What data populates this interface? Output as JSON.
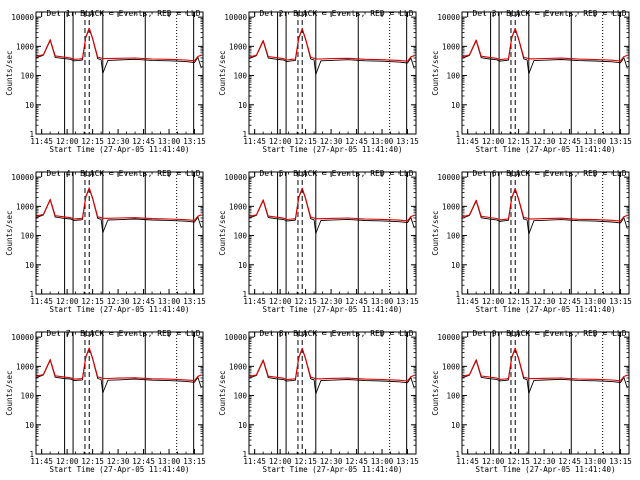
{
  "figure": {
    "shared_time_axis": {
      "xlabel": "Start Time (27-Apr-05 11:41:40)",
      "tick_labels": [
        "11:45",
        "12:00",
        "12:15",
        "12:30",
        "12:45",
        "13:00",
        "13:15"
      ]
    },
    "shared_count_axis": {
      "ylabel": "Counts/sec",
      "tick_labels": [
        "1",
        "10",
        "100",
        "1000",
        "10000"
      ]
    }
  },
  "colors": {
    "events": "#000000",
    "lld": "#e00000",
    "axes": "#000000"
  },
  "chart_data": [
    {
      "type": "line",
      "title": "Det 1r  BLACK = Events, RED = LLD",
      "xlabel": "Start Time (27-Apr-05 11:41:40)",
      "ylabel": "Counts/sec",
      "xlim": [
        "11:41:40",
        "13:20:00"
      ],
      "ylim": [
        1,
        15000
      ],
      "yscale": "log",
      "x": [
        "11:41:40",
        "11:46",
        "11:50",
        "11:53",
        "11:58",
        "12:02",
        "12:04",
        "12:07",
        "12:09",
        "12:11",
        "12:13",
        "12:15",
        "12:18",
        "12:20",
        "12:21",
        "12:24",
        "12:30",
        "12:40",
        "12:50",
        "13:00",
        "13:10",
        "13:15",
        "13:17",
        "13:19"
      ],
      "series": [
        {
          "name": "Events",
          "values": [
            400,
            500,
            1600,
            420,
            380,
            360,
            320,
            330,
            340,
            2000,
            4000,
            1800,
            380,
            350,
            120,
            330,
            340,
            360,
            330,
            320,
            300,
            280,
            420,
            180
          ]
        },
        {
          "name": "LLD",
          "values": [
            450,
            520,
            1700,
            470,
            430,
            400,
            360,
            370,
            380,
            2100,
            4200,
            1900,
            430,
            400,
            380,
            380,
            390,
            400,
            370,
            360,
            340,
            320,
            450,
            500
          ]
        }
      ]
    },
    {
      "type": "line",
      "title": "Det 2r  BLACK = Events, RED = LLD",
      "xlabel": "Start Time (27-Apr-05 11:41:40)",
      "ylabel": "Counts/sec",
      "xlim": [
        "11:41:40",
        "13:20:00"
      ],
      "ylim": [
        1,
        15000
      ],
      "yscale": "log",
      "x": [
        "11:41:40",
        "11:46",
        "11:50",
        "11:53",
        "11:58",
        "12:02",
        "12:04",
        "12:07",
        "12:09",
        "12:11",
        "12:13",
        "12:15",
        "12:18",
        "12:20",
        "12:21",
        "12:24",
        "12:30",
        "12:40",
        "12:50",
        "13:00",
        "13:10",
        "13:15",
        "13:17",
        "13:19"
      ],
      "series": [
        {
          "name": "Events",
          "values": [
            380,
            480,
            1500,
            400,
            360,
            340,
            300,
            320,
            330,
            1900,
            3800,
            1700,
            370,
            340,
            110,
            320,
            330,
            350,
            320,
            310,
            290,
            270,
            400,
            170
          ]
        },
        {
          "name": "LLD",
          "values": [
            430,
            500,
            1600,
            450,
            410,
            380,
            340,
            360,
            370,
            2000,
            4000,
            1800,
            420,
            390,
            370,
            370,
            380,
            390,
            360,
            350,
            330,
            310,
            440,
            480
          ]
        }
      ]
    },
    {
      "type": "line",
      "title": "Det 3r  BLACK = Events, RED = LLD",
      "xlabel": "Start Time (27-Apr-05 11:41:40)",
      "ylabel": "Counts/sec",
      "xlim": [
        "11:41:40",
        "13:20:00"
      ],
      "ylim": [
        1,
        15000
      ],
      "yscale": "log",
      "x": [
        "11:41:40",
        "11:46",
        "11:50",
        "11:53",
        "11:58",
        "12:02",
        "12:04",
        "12:07",
        "12:09",
        "12:11",
        "12:13",
        "12:15",
        "12:18",
        "12:20",
        "12:21",
        "12:24",
        "12:30",
        "12:40",
        "12:50",
        "13:00",
        "13:10",
        "13:15",
        "13:17",
        "13:19"
      ],
      "series": [
        {
          "name": "Events",
          "values": [
            390,
            490,
            1550,
            410,
            370,
            350,
            310,
            325,
            335,
            1950,
            3900,
            1750,
            375,
            345,
            115,
            325,
            335,
            355,
            325,
            315,
            295,
            275,
            410,
            175
          ]
        },
        {
          "name": "LLD",
          "values": [
            440,
            510,
            1650,
            460,
            420,
            390,
            350,
            365,
            375,
            2050,
            4100,
            1850,
            425,
            395,
            375,
            375,
            385,
            395,
            365,
            355,
            335,
            315,
            445,
            490
          ]
        }
      ]
    },
    {
      "type": "line",
      "title": "Det 4r  BLACK = Events, RED = LLD",
      "xlabel": "Start Time (27-Apr-05 11:41:40)",
      "ylabel": "Counts/sec",
      "xlim": [
        "11:41:40",
        "13:20:00"
      ],
      "ylim": [
        1,
        15000
      ],
      "yscale": "log",
      "x": [
        "11:41:40",
        "11:46",
        "11:50",
        "11:53",
        "11:58",
        "12:02",
        "12:04",
        "12:07",
        "12:09",
        "12:11",
        "12:13",
        "12:15",
        "12:18",
        "12:20",
        "12:21",
        "12:24",
        "12:30",
        "12:40",
        "12:50",
        "13:00",
        "13:10",
        "13:15",
        "13:17",
        "13:19"
      ],
      "series": [
        {
          "name": "Events",
          "values": [
            410,
            510,
            1650,
            430,
            390,
            370,
            330,
            340,
            350,
            2050,
            4100,
            1850,
            390,
            360,
            125,
            340,
            350,
            370,
            340,
            330,
            310,
            290,
            430,
            185
          ]
        },
        {
          "name": "LLD",
          "values": [
            460,
            530,
            1750,
            480,
            440,
            410,
            370,
            380,
            390,
            2150,
            4300,
            1950,
            440,
            410,
            390,
            390,
            400,
            410,
            380,
            370,
            350,
            330,
            460,
            510
          ]
        }
      ]
    },
    {
      "type": "line",
      "title": "Det 5r  BLACK = Events, RED = LLD",
      "xlabel": "Start Time (27-Apr-05 11:41:40)",
      "ylabel": "Counts/sec",
      "xlim": [
        "11:41:40",
        "13:20:00"
      ],
      "ylim": [
        1,
        15000
      ],
      "yscale": "log",
      "x": [
        "11:41:40",
        "11:46",
        "11:50",
        "11:53",
        "11:58",
        "12:02",
        "12:04",
        "12:07",
        "12:09",
        "12:11",
        "12:13",
        "12:15",
        "12:18",
        "12:20",
        "12:21",
        "12:24",
        "12:30",
        "12:40",
        "12:50",
        "13:00",
        "13:10",
        "13:15",
        "13:17",
        "13:19"
      ],
      "series": [
        {
          "name": "Events",
          "values": [
            395,
            495,
            1580,
            415,
            375,
            355,
            315,
            328,
            338,
            1980,
            3950,
            1780,
            378,
            348,
            118,
            328,
            338,
            358,
            328,
            318,
            298,
            278,
            415,
            178
          ]
        },
        {
          "name": "LLD",
          "values": [
            445,
            515,
            1680,
            465,
            425,
            395,
            355,
            368,
            378,
            2080,
            4150,
            1880,
            428,
            398,
            378,
            378,
            388,
            398,
            368,
            358,
            338,
            318,
            448,
            495
          ]
        }
      ]
    },
    {
      "type": "line",
      "title": "Det 6r  BLACK = Events, RED = LLD",
      "xlabel": "Start Time (27-Apr-05 11:41:40)",
      "ylabel": "Counts/sec",
      "xlim": [
        "11:41:40",
        "13:20:00"
      ],
      "ylim": [
        1,
        15000
      ],
      "yscale": "log",
      "x": [
        "11:41:40",
        "11:46",
        "11:50",
        "11:53",
        "11:58",
        "12:02",
        "12:04",
        "12:07",
        "12:09",
        "12:11",
        "12:13",
        "12:15",
        "12:18",
        "12:20",
        "12:21",
        "12:24",
        "12:30",
        "12:40",
        "12:50",
        "13:00",
        "13:10",
        "13:15",
        "13:17",
        "13:19"
      ],
      "series": [
        {
          "name": "Events",
          "values": [
            385,
            485,
            1520,
            405,
            365,
            345,
            305,
            322,
            332,
            1920,
            3850,
            1720,
            372,
            342,
            112,
            322,
            332,
            352,
            322,
            312,
            292,
            272,
            405,
            172
          ]
        },
        {
          "name": "LLD",
          "values": [
            435,
            505,
            1620,
            455,
            415,
            385,
            345,
            362,
            372,
            2020,
            4050,
            1820,
            422,
            392,
            372,
            372,
            382,
            392,
            362,
            352,
            332,
            312,
            442,
            485
          ]
        }
      ]
    },
    {
      "type": "line",
      "title": "Det 7r  BLACK = Events, RED = LLD",
      "xlabel": "Start Time (27-Apr-05 11:41:40)",
      "ylabel": "Counts/sec",
      "xlim": [
        "11:41:40",
        "13:20:00"
      ],
      "ylim": [
        1,
        15000
      ],
      "yscale": "log",
      "x": [
        "11:41:40",
        "11:46",
        "11:50",
        "11:53",
        "11:58",
        "12:02",
        "12:04",
        "12:07",
        "12:09",
        "12:11",
        "12:13",
        "12:15",
        "12:18",
        "12:20",
        "12:21",
        "12:24",
        "12:30",
        "12:40",
        "12:50",
        "13:00",
        "13:10",
        "13:15",
        "13:17",
        "13:19"
      ],
      "series": [
        {
          "name": "Events",
          "values": [
            405,
            505,
            1620,
            425,
            385,
            365,
            325,
            335,
            345,
            2020,
            4050,
            1820,
            385,
            355,
            122,
            335,
            345,
            365,
            335,
            325,
            305,
            285,
            425,
            182
          ]
        },
        {
          "name": "LLD",
          "values": [
            455,
            525,
            1720,
            475,
            435,
            405,
            365,
            375,
            385,
            2120,
            4250,
            1920,
            435,
            405,
            385,
            385,
            395,
            405,
            375,
            365,
            345,
            325,
            455,
            505
          ]
        }
      ]
    },
    {
      "type": "line",
      "title": "Det 8r  BLACK = Events, RED = LLD",
      "xlabel": "Start Time (27-Apr-05 11:41:40)",
      "ylabel": "Counts/sec",
      "xlim": [
        "11:41:40",
        "13:20:00"
      ],
      "ylim": [
        1,
        15000
      ],
      "yscale": "log",
      "x": [
        "11:41:40",
        "11:46",
        "11:50",
        "11:53",
        "11:58",
        "12:02",
        "12:04",
        "12:07",
        "12:09",
        "12:11",
        "12:13",
        "12:15",
        "12:18",
        "12:20",
        "12:21",
        "12:24",
        "12:30",
        "12:40",
        "12:50",
        "13:00",
        "13:10",
        "13:15",
        "13:17",
        "13:19"
      ],
      "series": [
        {
          "name": "Events",
          "values": [
            392,
            492,
            1560,
            412,
            372,
            352,
            312,
            326,
            336,
            1960,
            3920,
            1760,
            376,
            346,
            116,
            326,
            336,
            356,
            326,
            316,
            296,
            276,
            412,
            176
          ]
        },
        {
          "name": "LLD",
          "values": [
            442,
            512,
            1660,
            462,
            422,
            392,
            352,
            366,
            376,
            2060,
            4120,
            1860,
            426,
            396,
            376,
            376,
            386,
            396,
            366,
            356,
            336,
            316,
            446,
            492
          ]
        }
      ]
    },
    {
      "type": "line",
      "title": "Det 9r  BLACK = Events, RED = LLD",
      "xlabel": "Start Time (27-Apr-05 11:41:40)",
      "ylabel": "Counts/sec",
      "xlim": [
        "11:41:40",
        "13:20:00"
      ],
      "ylim": [
        1,
        15000
      ],
      "yscale": "log",
      "x": [
        "11:41:40",
        "11:46",
        "11:50",
        "11:53",
        "11:58",
        "12:02",
        "12:04",
        "12:07",
        "12:09",
        "12:11",
        "12:13",
        "12:15",
        "12:18",
        "12:20",
        "12:21",
        "12:24",
        "12:30",
        "12:40",
        "12:50",
        "13:00",
        "13:10",
        "13:15",
        "13:17",
        "13:19"
      ],
      "series": [
        {
          "name": "Events",
          "values": [
            398,
            498,
            1590,
            418,
            378,
            358,
            318,
            330,
            340,
            1990,
            3980,
            1790,
            380,
            350,
            119,
            330,
            340,
            360,
            330,
            320,
            300,
            280,
            418,
            179
          ]
        },
        {
          "name": "LLD",
          "values": [
            448,
            518,
            1690,
            468,
            428,
            398,
            358,
            370,
            380,
            2090,
            4180,
            1890,
            430,
            400,
            380,
            380,
            390,
            400,
            370,
            360,
            340,
            320,
            450,
            498
          ]
        }
      ]
    }
  ],
  "markers": {
    "solid_vertical_lines": [
      "11:58:30",
      "12:03:30",
      "12:21:00",
      "12:46:00",
      "13:14:30"
    ],
    "dashed_vertical_lines": [
      "12:10:30",
      "12:13:00"
    ],
    "dotted_vertical_lines": [
      "13:04:30"
    ]
  }
}
